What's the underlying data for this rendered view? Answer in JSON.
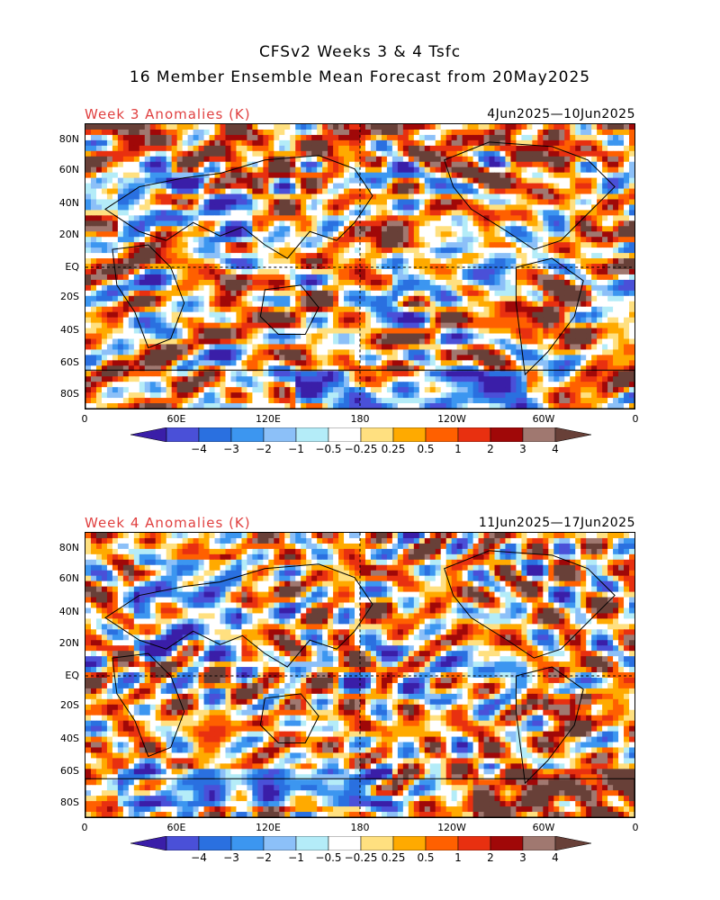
{
  "title": {
    "line1": "CFSv2 Weeks 3 & 4 Tsfc",
    "line2": "16 Member Ensemble Mean Forecast from 20May2025"
  },
  "panels": [
    {
      "title": "Week 3 Anomalies (K)",
      "dates": "4Jun2025—10Jun2025"
    },
    {
      "title": "Week 4 Anomalies (K)",
      "dates": "11Jun2025—17Jun2025"
    }
  ],
  "lat_labels": [
    "80N",
    "60N",
    "40N",
    "20N",
    "EQ",
    "20S",
    "40S",
    "60S",
    "80S"
  ],
  "lon_labels": [
    "0",
    "60E",
    "120E",
    "180",
    "120W",
    "60W",
    "0"
  ],
  "colorbar": {
    "labels": [
      "−4",
      "−3",
      "−2",
      "−1",
      "−0.5",
      "−0.25",
      "0.25",
      "0.5",
      "1",
      "2",
      "3",
      "4"
    ],
    "colors": [
      "#3a1ea8",
      "#4a50d8",
      "#2a70e0",
      "#3c96f0",
      "#8cc0f8",
      "#b4ecf8",
      "#ffffff",
      "#ffe080",
      "#ffaa00",
      "#ff6000",
      "#e83010",
      "#a00808",
      "#a07870",
      "#684038"
    ]
  },
  "map_colors": {
    "land_outline": "#000000",
    "ocean_bg": "#ffffff"
  }
}
